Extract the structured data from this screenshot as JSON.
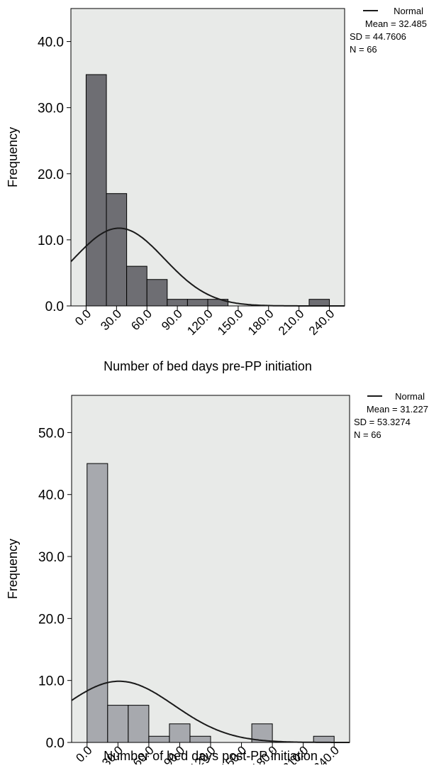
{
  "chart_data": [
    {
      "type": "bar",
      "variant": "histogram",
      "xlabel": "Number of bed days pre-PP initiation",
      "ylabel": "Frequency",
      "ylim": [
        0,
        45
      ],
      "xlim": [
        -15,
        255
      ],
      "yticks": [
        "0.0",
        "10.0",
        "20.0",
        "30.0",
        "40.0"
      ],
      "xticks": [
        "0.0",
        "30.0",
        "60.0",
        "90.0",
        "120.0",
        "150.0",
        "180.0",
        "210.0",
        "240.0"
      ],
      "bin_width": 20,
      "bins": [
        {
          "start": 0,
          "end": 20,
          "count": 35
        },
        {
          "start": 20,
          "end": 40,
          "count": 17
        },
        {
          "start": 40,
          "end": 60,
          "count": 6
        },
        {
          "start": 60,
          "end": 80,
          "count": 4
        },
        {
          "start": 80,
          "end": 100,
          "count": 1
        },
        {
          "start": 100,
          "end": 120,
          "count": 1
        },
        {
          "start": 120,
          "end": 140,
          "count": 1
        },
        {
          "start": 140,
          "end": 160,
          "count": 0
        },
        {
          "start": 160,
          "end": 180,
          "count": 0
        },
        {
          "start": 180,
          "end": 200,
          "count": 0
        },
        {
          "start": 200,
          "end": 220,
          "count": 0
        },
        {
          "start": 220,
          "end": 240,
          "count": 1
        }
      ],
      "legend": {
        "line_label": "Normal",
        "mean_text": "Mean = 32.485",
        "sd_text": "SD = 44.7606",
        "n_text": "N = 66",
        "mean": 32.485,
        "sd": 44.7606,
        "n": 66
      },
      "grid": false,
      "legend_position": "top-right",
      "colors": {
        "bar_fill": "#6e6e73",
        "plot_bg": "#e8eae8",
        "curve": "#1a1a1a"
      }
    },
    {
      "type": "bar",
      "variant": "histogram",
      "xlabel": "Number of bed days post-PP initiation",
      "ylabel": "Frequency",
      "ylim": [
        0,
        56
      ],
      "xlim": [
        -15,
        255
      ],
      "yticks": [
        "0.0",
        "10.0",
        "20.0",
        "30.0",
        "40.0",
        "50.0"
      ],
      "xticks": [
        "0.0",
        "30.0",
        "60.0",
        "90.0",
        "120.0",
        "150.0",
        "180.0",
        "210.0",
        "240.0"
      ],
      "bin_width": 20,
      "bins": [
        {
          "start": 0,
          "end": 20,
          "count": 45
        },
        {
          "start": 20,
          "end": 40,
          "count": 6
        },
        {
          "start": 40,
          "end": 60,
          "count": 6
        },
        {
          "start": 60,
          "end": 80,
          "count": 1
        },
        {
          "start": 80,
          "end": 100,
          "count": 3
        },
        {
          "start": 100,
          "end": 120,
          "count": 1
        },
        {
          "start": 120,
          "end": 140,
          "count": 0
        },
        {
          "start": 140,
          "end": 160,
          "count": 0
        },
        {
          "start": 160,
          "end": 180,
          "count": 3
        },
        {
          "start": 180,
          "end": 200,
          "count": 0
        },
        {
          "start": 200,
          "end": 220,
          "count": 0
        },
        {
          "start": 220,
          "end": 240,
          "count": 1
        }
      ],
      "legend": {
        "line_label": "Normal",
        "mean_text": "Mean = 31.227",
        "sd_text": "SD = 53.3274",
        "n_text": "N = 66",
        "mean": 31.227,
        "sd": 53.3274,
        "n": 66
      },
      "grid": false,
      "legend_position": "top-right",
      "colors": {
        "bar_fill": "#a7a9ae",
        "plot_bg": "#e8eae8",
        "curve": "#1a1a1a"
      }
    }
  ]
}
